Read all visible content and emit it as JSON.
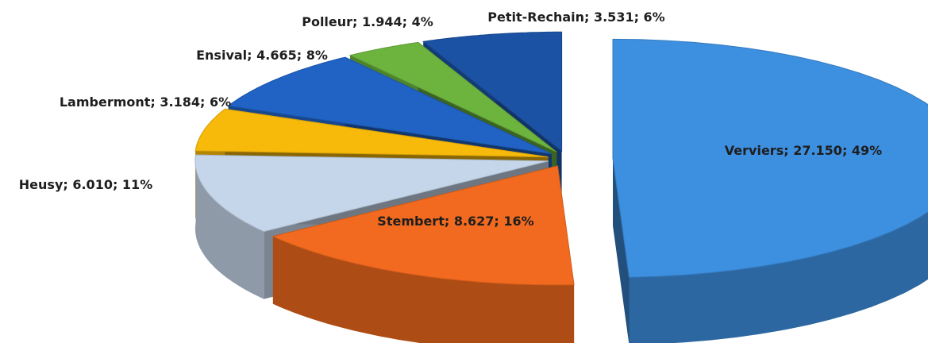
{
  "chart_data": {
    "type": "pie3d",
    "categories": [
      "Verviers",
      "Stembert",
      "Heusy",
      "Lambermont",
      "Ensival",
      "Polleur",
      "Petit-Rechain"
    ],
    "values": [
      27150,
      8627,
      6010,
      3184,
      4665,
      1944,
      3531
    ],
    "value_labels": [
      "27.150",
      "8.627",
      "6.010",
      "3.184",
      "4.665",
      "1.944",
      "3.531"
    ],
    "percent_labels": [
      "49%",
      "16%",
      "11%",
      "6%",
      "8%",
      "4%",
      "6%"
    ],
    "separator": "; ",
    "colors": [
      "#3d8fe0",
      "#f26a1f",
      "#c6d6ea",
      "#f7b90a",
      "#2063c4",
      "#6cb43e",
      "#1c52a3"
    ]
  }
}
